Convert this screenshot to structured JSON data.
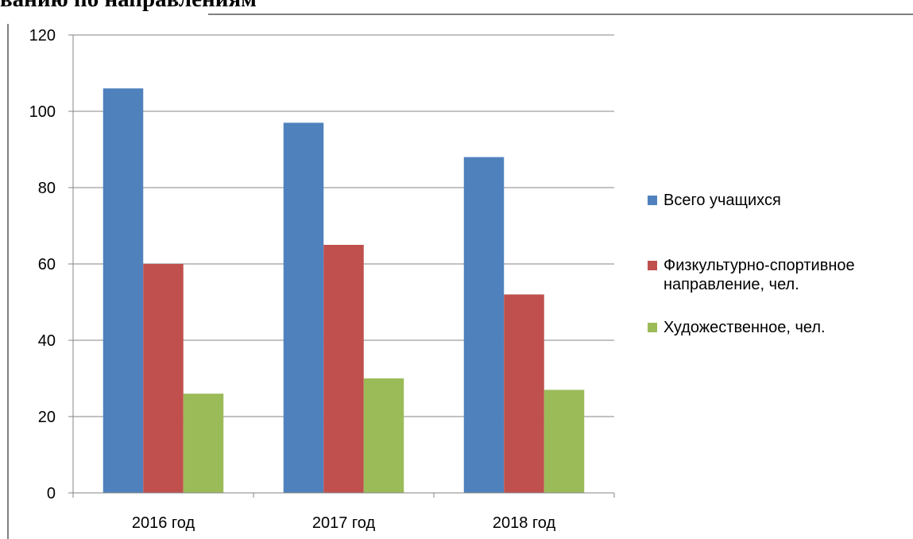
{
  "chart_data": {
    "type": "bar",
    "title": "ванию по направлениям",
    "categories": [
      "2016 год",
      "2017 год",
      "2018 год"
    ],
    "series": [
      {
        "name": "Всего учащихся",
        "color": "#4f81bd",
        "values": [
          106,
          97,
          88
        ]
      },
      {
        "name": "Физкультурно-спортивное направление, чел.",
        "color": "#c0504d",
        "values": [
          60,
          65,
          52
        ]
      },
      {
        "name": "Художественное, чел.",
        "color": "#9bbb59",
        "values": [
          26,
          30,
          27
        ]
      }
    ],
    "ylim": [
      0,
      120
    ],
    "yticks": [
      0,
      20,
      40,
      60,
      80,
      100,
      120
    ],
    "grid": true,
    "legend": "right"
  }
}
